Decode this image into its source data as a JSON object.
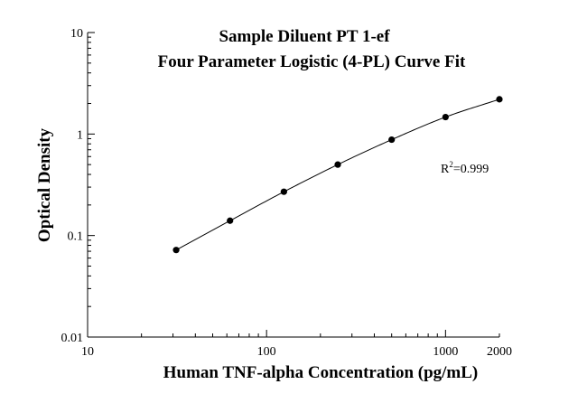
{
  "chart_data": {
    "type": "scatter",
    "title": "Sample Diluent PT 1-ef",
    "subtitle": "Four Parameter Logistic (4-PL) Curve Fit",
    "xlabel": "Human TNF-alpha Concentration (pg/mL)",
    "ylabel": "Optical Density",
    "x_scale": "log",
    "y_scale": "log",
    "xlim": [
      10,
      2000
    ],
    "ylim": [
      0.01,
      10
    ],
    "x_ticks": [
      "10",
      "100",
      "1000",
      "2000"
    ],
    "y_ticks": [
      "0.01",
      "0.1",
      "1",
      "10"
    ],
    "grid": false,
    "legend": "none",
    "series": [
      {
        "x": [
          31.25,
          62.5,
          125,
          250,
          500,
          1000,
          2000
        ],
        "y": [
          0.072,
          0.14,
          0.27,
          0.5,
          0.88,
          1.47,
          2.2
        ]
      }
    ],
    "fit_curve": {
      "model": "4-PL",
      "x_range": [
        31.25,
        2000
      ]
    },
    "annotation": {
      "r_label": "R",
      "r_sup": "2",
      "r_value": "=0.999"
    },
    "colors": {
      "points": "#000000",
      "line": "#000000",
      "axes": "#000000"
    }
  }
}
